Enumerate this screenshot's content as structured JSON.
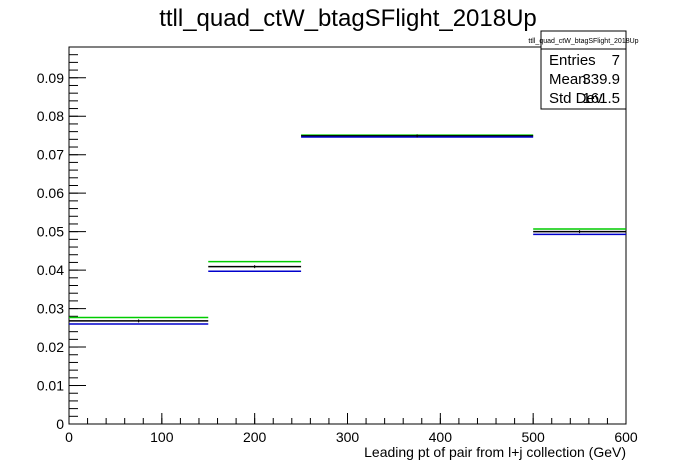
{
  "chart_data": {
    "type": "histogram",
    "title": "ttll_quad_ctW_btagSFlight_2018Up",
    "xlabel": "Leading pt of pair from l+j collection (GeV)",
    "ylabel": "",
    "xlim": [
      0,
      600
    ],
    "ylim": [
      0,
      0.098
    ],
    "x_ticks": [
      0,
      100,
      200,
      300,
      400,
      500,
      600
    ],
    "x_tick_labels": [
      "0",
      "100",
      "200",
      "300",
      "400",
      "500",
      "600"
    ],
    "y_ticks": [
      0,
      0.01,
      0.02,
      0.03,
      0.04,
      0.05,
      0.06,
      0.07,
      0.08,
      0.09
    ],
    "y_tick_labels": [
      "0",
      "0.01",
      "0.02",
      "0.03",
      "0.04",
      "0.05",
      "0.06",
      "0.07",
      "0.08",
      "0.09"
    ],
    "bin_edges": [
      0,
      150,
      250,
      500,
      600
    ],
    "series": [
      {
        "color": "#00cc00",
        "values": [
          0.0277,
          0.0422,
          0.0751,
          0.0507
        ]
      },
      {
        "color": "#000000",
        "values": [
          0.0268,
          0.0409,
          0.0749,
          0.05
        ]
      },
      {
        "color": "#0000cc",
        "values": [
          0.026,
          0.0397,
          0.0746,
          0.0493
        ]
      }
    ],
    "stats_box": {
      "title": "ttll_quad_ctW_btagSFlight_2018Up",
      "rows": [
        {
          "label": "Entries",
          "value": "7"
        },
        {
          "label": "Mean",
          "value": "339.9"
        },
        {
          "label": "Std Dev",
          "value": "161.5"
        }
      ]
    }
  }
}
